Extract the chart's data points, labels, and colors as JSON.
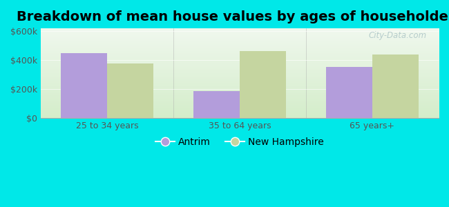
{
  "title": "Breakdown of mean house values by ages of householders",
  "categories": [
    "25 to 34 years",
    "35 to 64 years",
    "65 years+"
  ],
  "antrim_values": [
    450000,
    185000,
    355000
  ],
  "nh_values": [
    375000,
    465000,
    440000
  ],
  "antrim_color": "#b39ddb",
  "nh_color": "#c5d5a0",
  "antrim_label": "Antrim",
  "nh_label": "New Hampshire",
  "ylim": [
    0,
    620000
  ],
  "yticks": [
    0,
    200000,
    400000,
    600000
  ],
  "background_outer": "#00e8e8",
  "background_inner_bottom": "#d4edca",
  "background_inner_top": "#f0f8ee",
  "bar_width": 0.35,
  "title_fontsize": 14,
  "tick_fontsize": 9,
  "legend_fontsize": 10,
  "watermark": "City-Data.com",
  "watermark_color": "#b0c8c8"
}
